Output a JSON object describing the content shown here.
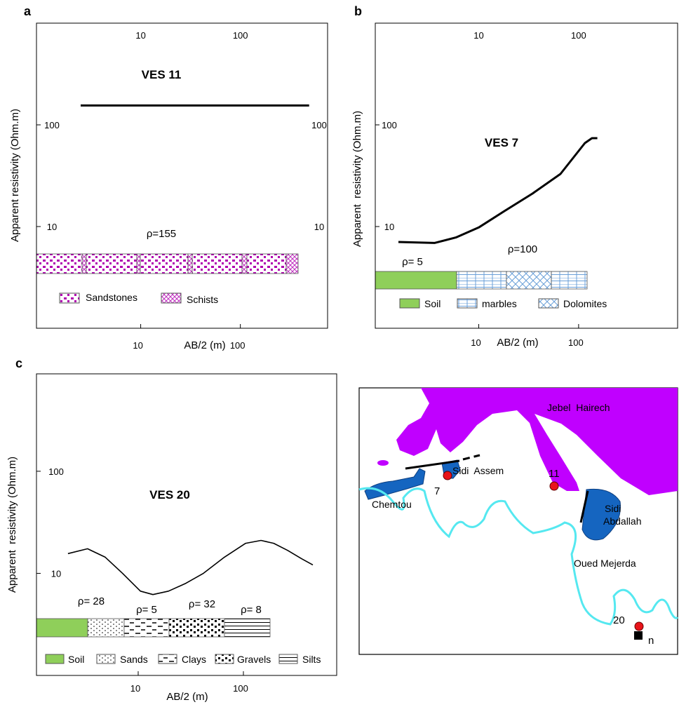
{
  "chart_data": [
    {
      "type": "line",
      "panel": "a",
      "title": "VES 11",
      "xlabel": "AB/2 (m)",
      "ylabel": "Apparent resistivity (Ohm.m)",
      "xscale": "log",
      "yscale": "log",
      "xlim": [
        0.9,
        750
      ],
      "ylim": [
        1,
        1000
      ],
      "xticks": [
        10,
        100
      ],
      "yticks": [
        10,
        100
      ],
      "x": [
        2.5,
        490
      ],
      "values": [
        155,
        155
      ],
      "color": "#000000",
      "annotations": [
        "ρ=155"
      ],
      "legend": [
        "Sandstones",
        "Schists"
      ]
    },
    {
      "type": "line",
      "panel": "b",
      "title": "VES 7",
      "xlabel": "AB/2 (m)",
      "ylabel": "Apparent  resistivity (Ohm.m)",
      "xscale": "log",
      "yscale": "log",
      "xlim": [
        0.92,
        980
      ],
      "ylim": [
        1,
        1000
      ],
      "xticks": [
        10,
        100
      ],
      "yticks": [
        10,
        100
      ],
      "x": [
        1.57,
        3.6,
        5.9,
        10,
        18.1,
        34.5,
        65.8,
        115.6,
        136,
        154
      ],
      "values": [
        7.05,
        6.9,
        7.8,
        9.8,
        14.2,
        21.1,
        32.9,
        66.2,
        74,
        74
      ],
      "color": "#000000",
      "annotations": [
        "ρ=100",
        "ρ= 5"
      ],
      "legend": [
        "Soil",
        "marbles",
        "Dolomites"
      ]
    },
    {
      "type": "line",
      "panel": "c",
      "title": "VES 20",
      "xlabel": "AB/2 (m)",
      "ylabel": "Apparent  resistivity (Ohm.m)",
      "xscale": "log",
      "yscale": "log",
      "xlim": [
        1.08,
        770
      ],
      "ylim": [
        1,
        900
      ],
      "xticks": [
        10,
        100
      ],
      "yticks": [
        10,
        100
      ],
      "x": [
        2.15,
        3.3,
        4.86,
        7.1,
        10.5,
        13.8,
        19.4,
        28.4,
        41.7,
        66,
        105,
        147,
        194,
        263,
        357,
        457
      ],
      "values": [
        15.6,
        17.4,
        14.4,
        10,
        6.7,
        6.2,
        6.7,
        8.0,
        10,
        14.4,
        19.7,
        21,
        19.7,
        16.8,
        13.9,
        12.1
      ],
      "color": "#000000",
      "annotations": [
        "ρ= 28",
        "ρ= 5",
        "ρ= 32",
        "ρ= 8"
      ],
      "legend": [
        "Soil",
        "Sands",
        "Clays",
        "Gravels",
        "Silts"
      ]
    }
  ],
  "map": {
    "places": [
      "Jebel  Hairech",
      "Sidi  Assem",
      "Chemtou",
      "Sidi",
      "Abdallah",
      "Oued Mejerda"
    ],
    "sites": [
      "7",
      "11",
      "20"
    ],
    "north": "n"
  }
}
